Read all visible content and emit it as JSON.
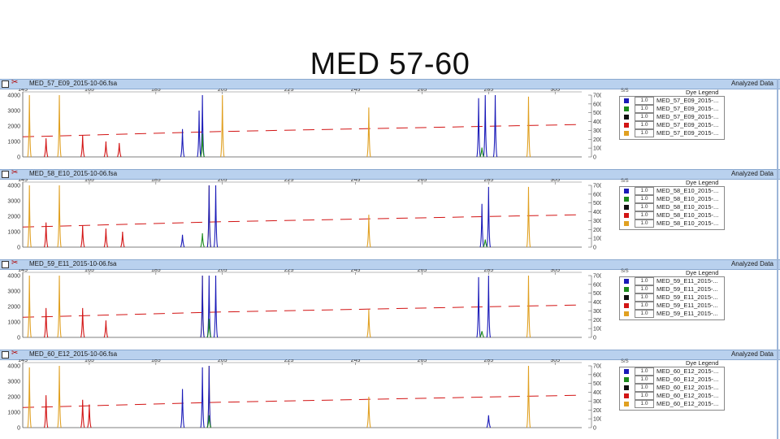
{
  "slide": {
    "title": "MED 57-60"
  },
  "colors": {
    "blue": "#1a1ab8",
    "green": "#1c8a1c",
    "black": "#111111",
    "red": "#d21414",
    "orange": "#e0a021",
    "header": "#b9d1ee"
  },
  "panels": [
    {
      "filename": "MED_57_E09_2015-10-06.fsa",
      "status": "Analyzed Data",
      "legend_title": "Dye Legend",
      "legend": [
        {
          "color": "blue",
          "check": "1.0",
          "name": "MED_57_E09_2015-..."
        },
        {
          "color": "green",
          "check": "1.0",
          "name": "MED_57_E09_2015-..."
        },
        {
          "color": "black",
          "check": "1.0",
          "name": "MED_57_E09_2015-..."
        },
        {
          "color": "red",
          "check": "1.0",
          "name": "MED_57_E09_2015-..."
        },
        {
          "color": "orange",
          "check": "1.0",
          "name": "MED_57_E09_2015-..."
        }
      ]
    },
    {
      "filename": "MED_58_E10_2015-10-06.fsa",
      "status": "Analyzed Data",
      "legend_title": "Dye Legend",
      "legend": [
        {
          "color": "blue",
          "check": "1.0",
          "name": "MED_58_E10_2015-..."
        },
        {
          "color": "green",
          "check": "1.0",
          "name": "MED_58_E10_2015-..."
        },
        {
          "color": "black",
          "check": "1.0",
          "name": "MED_58_E10_2015-..."
        },
        {
          "color": "red",
          "check": "1.0",
          "name": "MED_58_E10_2015-..."
        },
        {
          "color": "orange",
          "check": "1.0",
          "name": "MED_58_E10_2015-..."
        }
      ]
    },
    {
      "filename": "MED_59_E11_2015-10-06.fsa",
      "status": "Analyzed Data",
      "legend_title": "Dye Legend",
      "legend": [
        {
          "color": "blue",
          "check": "1.0",
          "name": "MED_59_E11_2015-..."
        },
        {
          "color": "green",
          "check": "1.0",
          "name": "MED_59_E11_2015-..."
        },
        {
          "color": "black",
          "check": "1.0",
          "name": "MED_59_E11_2015-..."
        },
        {
          "color": "red",
          "check": "1.0",
          "name": "MED_59_E11_2015-..."
        },
        {
          "color": "orange",
          "check": "1.0",
          "name": "MED_59_E11_2015-..."
        }
      ]
    },
    {
      "filename": "MED_60_E12_2015-10-06.fsa",
      "status": "Analyzed Data",
      "legend_title": "Dye Legend",
      "legend": [
        {
          "color": "blue",
          "check": "1.0",
          "name": "MED_60_E12_2015-..."
        },
        {
          "color": "green",
          "check": "1.0",
          "name": "MED_60_E12_2015-..."
        },
        {
          "color": "black",
          "check": "1.0",
          "name": "MED_60_E12_2015-..."
        },
        {
          "color": "red",
          "check": "1.0",
          "name": "MED_60_E12_2015-..."
        },
        {
          "color": "orange",
          "check": "1.0",
          "name": "MED_60_E12_2015-..."
        }
      ]
    }
  ],
  "chart_data": [
    {
      "type": "line",
      "sample": "MED_57_E09",
      "x_ticks": [
        145,
        165,
        185,
        205,
        225,
        245,
        265,
        285,
        305
      ],
      "xlim": [
        145,
        313
      ],
      "left_y_ticks": [
        0,
        1000,
        2000,
        3000,
        4000
      ],
      "ylim_left": [
        0,
        4000
      ],
      "right_y_ticks": [
        0,
        1000,
        2000,
        3000,
        4000,
        5000,
        6000,
        7000
      ],
      "ylim_right": [
        0,
        7000
      ],
      "series": [
        {
          "color": "orange",
          "peaks": [
            [
              147,
              4000
            ],
            [
              156,
              4000
            ],
            [
              205,
              4000
            ],
            [
              249,
              3200
            ],
            [
              297,
              3900
            ]
          ]
        },
        {
          "color": "blue",
          "peaks": [
            [
              193,
              1800
            ],
            [
              198,
              3000
            ],
            [
              199,
              4000
            ],
            [
              282,
              3800
            ],
            [
              284,
              4000
            ],
            [
              287,
              4000
            ]
          ]
        },
        {
          "color": "red",
          "peaks": [
            [
              152,
              1200
            ],
            [
              163,
              1400
            ],
            [
              170,
              1000
            ],
            [
              174,
              900
            ]
          ]
        },
        {
          "color": "green",
          "peaks": [
            [
              199,
              1500
            ],
            [
              283,
              600
            ]
          ]
        }
      ]
    },
    {
      "type": "line",
      "sample": "MED_58_E10",
      "x_ticks": [
        145,
        165,
        185,
        205,
        225,
        245,
        265,
        285,
        305
      ],
      "xlim": [
        145,
        313
      ],
      "left_y_ticks": [
        0,
        1000,
        2000,
        3000,
        4000
      ],
      "ylim_left": [
        0,
        4000
      ],
      "right_y_ticks": [
        0,
        1000,
        2000,
        3000,
        4000,
        5000,
        6000,
        7000
      ],
      "ylim_right": [
        0,
        7000
      ],
      "series": [
        {
          "color": "orange",
          "peaks": [
            [
              147,
              4000
            ],
            [
              156,
              4000
            ],
            [
              201,
              4000
            ],
            [
              249,
              2100
            ],
            [
              297,
              3900
            ]
          ]
        },
        {
          "color": "blue",
          "peaks": [
            [
              193,
              800
            ],
            [
              201,
              4000
            ],
            [
              203,
              4000
            ],
            [
              283,
              2800
            ],
            [
              285,
              3900
            ]
          ]
        },
        {
          "color": "red",
          "peaks": [
            [
              152,
              1600
            ],
            [
              163,
              1400
            ],
            [
              170,
              1200
            ],
            [
              175,
              1000
            ]
          ]
        },
        {
          "color": "green",
          "peaks": [
            [
              199,
              900
            ],
            [
              284,
              500
            ]
          ]
        }
      ]
    },
    {
      "type": "line",
      "sample": "MED_59_E11",
      "x_ticks": [
        145,
        165,
        185,
        205,
        225,
        245,
        265,
        285,
        305
      ],
      "xlim": [
        145,
        313
      ],
      "left_y_ticks": [
        0,
        1000,
        2000,
        3000,
        4000
      ],
      "ylim_left": [
        0,
        4000
      ],
      "right_y_ticks": [
        0,
        1000,
        2000,
        3000,
        4000,
        5000,
        6000,
        7000
      ],
      "ylim_right": [
        0,
        7000
      ],
      "series": [
        {
          "color": "orange",
          "peaks": [
            [
              147,
              4000
            ],
            [
              156,
              4000
            ],
            [
              199,
              4000
            ],
            [
              249,
              1800
            ],
            [
              297,
              4000
            ]
          ]
        },
        {
          "color": "blue",
          "peaks": [
            [
              199,
              4000
            ],
            [
              201,
              4000
            ],
            [
              203,
              4000
            ],
            [
              282,
              3900
            ],
            [
              285,
              4000
            ]
          ]
        },
        {
          "color": "red",
          "peaks": [
            [
              152,
              1900
            ],
            [
              163,
              1900
            ],
            [
              170,
              1100
            ]
          ]
        },
        {
          "color": "green",
          "peaks": [
            [
              201,
              1200
            ],
            [
              283,
              400
            ]
          ]
        }
      ]
    },
    {
      "type": "line",
      "sample": "MED_60_E12",
      "x_ticks": [
        145,
        165,
        185,
        205,
        225,
        245,
        265,
        285,
        305
      ],
      "xlim": [
        145,
        313
      ],
      "left_y_ticks": [
        0,
        1000,
        2000,
        3000,
        4000
      ],
      "ylim_left": [
        0,
        4000
      ],
      "right_y_ticks": [
        0,
        1000,
        2000,
        3000,
        4000,
        5000,
        6000,
        7000
      ],
      "ylim_right": [
        0,
        7000
      ],
      "series": [
        {
          "color": "orange",
          "peaks": [
            [
              147,
              3900
            ],
            [
              156,
              4000
            ],
            [
              201,
              4000
            ],
            [
              249,
              2000
            ],
            [
              297,
              4000
            ]
          ]
        },
        {
          "color": "blue",
          "peaks": [
            [
              193,
              2500
            ],
            [
              199,
              3900
            ],
            [
              201,
              4000
            ],
            [
              285,
              800
            ]
          ]
        },
        {
          "color": "red",
          "peaks": [
            [
              152,
              2100
            ],
            [
              163,
              1800
            ],
            [
              165,
              1500
            ]
          ]
        },
        {
          "color": "green",
          "peaks": [
            [
              201,
              800
            ]
          ]
        }
      ]
    }
  ]
}
